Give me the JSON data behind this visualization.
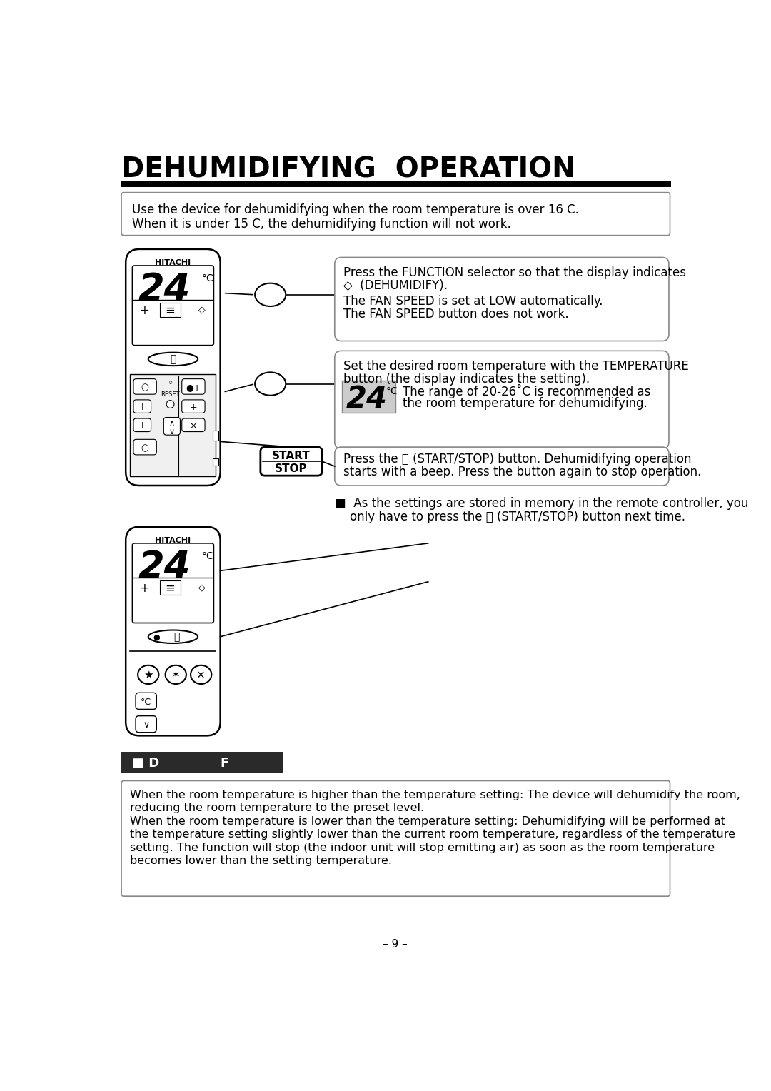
{
  "title": "DEHUMIDIFYING  OPERATION",
  "page_number": "– 9 –",
  "bg_color": "#ffffff",
  "top_box_text1": "Use the device for dehumidifying when the room temperature is over 16 C.",
  "top_box_text2": "When it is under 15 C, the dehumidifying function will not work.",
  "callout1_line1": "Press the FUNCTION selector so that the display indicates",
  "callout1_line2": "◇  (DEHUMIDIFY).",
  "callout1_line3": "The FAN SPEED is set at LOW automatically.",
  "callout1_line4": "The FAN SPEED button does not work.",
  "callout2_line1": "Set the desired room temperature with the TEMPERATURE",
  "callout2_line2": "button (the display indicates the setting).",
  "callout2b_line1": "The range of 20-26˚C is recommended as",
  "callout2b_line2": "the room temperature for dehumidifying.",
  "callout3_line1": "Press the ⓞ (START/STOP) button. Dehumidifying operation",
  "callout3_line2": "starts with a beep. Press the button again to stop operation.",
  "note_line1": "■  As the settings are stored in memory in the remote controller, you",
  "note_line2": "    only have to press the ⓞ (START/STOP) button next time.",
  "bottom_bar_label1": "■ D",
  "bottom_bar_label2": "F",
  "bottom_box_line1": "When the room temperature is higher than the temperature setting: The device will dehumidify the room,",
  "bottom_box_line2": "reducing the room temperature to the preset level.",
  "bottom_box_line3": "When the room temperature is lower than the temperature setting: Dehumidifying will be performed at",
  "bottom_box_line4": "the temperature setting slightly lower than the current room temperature, regardless of the temperature",
  "bottom_box_line5": "setting. The function will stop (the indoor unit will stop emitting air) as soon as the room temperature",
  "bottom_box_line6": "becomes lower than the setting temperature.",
  "start_label": "START",
  "stop_label": "STOP",
  "hitachi": "HITACHI",
  "reset": "RESET"
}
